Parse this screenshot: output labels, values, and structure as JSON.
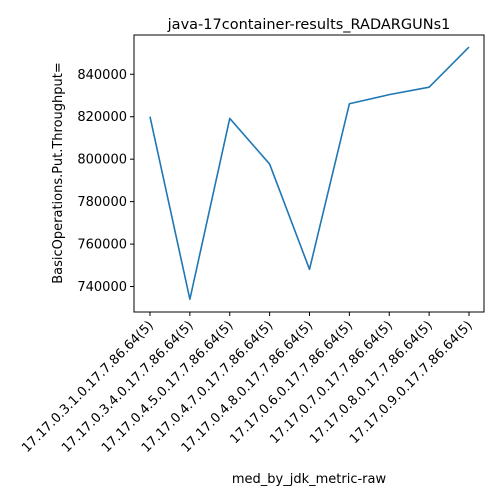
{
  "chart_data": {
    "type": "line",
    "title": "java-17container-results_RADARGUNs1",
    "xlabel": "med_by_jdk_metric-raw",
    "ylabel": "BasicOperations.Put.Throughput=",
    "categories": [
      "17.17.0.3.1.0.17.7.86.64(5)",
      "17.17.0.3.4.0.17.7.86.64(5)",
      "17.17.0.4.5.0.17.7.86.64(5)",
      "17.17.0.4.7.0.17.7.86.64(5)",
      "17.17.0.4.8.0.17.7.86.64(5)",
      "17.17.0.6.0.17.7.86.64(5)",
      "17.17.0.7.0.17.7.86.64(5)",
      "17.17.0.8.0.17.7.86.64(5)",
      "17.17.0.9.0.17.7.86.64(5)"
    ],
    "series": [
      {
        "values": [
          820000,
          734000,
          819200,
          797700,
          748100,
          826100,
          830400,
          833900,
          852800
        ],
        "color": "#1f77b4"
      }
    ],
    "yticks": [
      740000,
      760000,
      780000,
      800000,
      820000,
      840000
    ],
    "ytick_labels": [
      "740000",
      "760000",
      "780000",
      "800000",
      "820000",
      "840000"
    ],
    "ylim": [
      728000,
      858500
    ],
    "grid": false,
    "legend": "none"
  }
}
